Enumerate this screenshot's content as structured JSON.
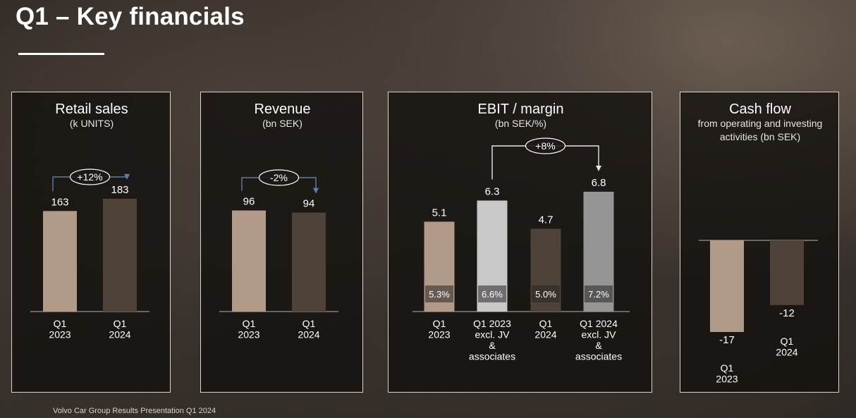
{
  "page": {
    "title": "Q1 – Key financials",
    "footer": "Volvo Car Group Results Presentation Q1 2024"
  },
  "chart_data": [
    {
      "type": "bar",
      "title": "Retail sales",
      "subtitle": [
        "(k UNITS)"
      ],
      "categories": [
        [
          "Q1",
          "2023"
        ],
        [
          "Q1",
          "2024"
        ]
      ],
      "values": [
        163,
        183
      ],
      "labels": [
        "163",
        "183"
      ],
      "colors": [
        "#b29a88",
        "#4e4239"
      ],
      "ylim": [
        0,
        280
      ],
      "change": {
        "text": "+12%",
        "from": 0,
        "to": 1
      }
    },
    {
      "type": "bar",
      "title": "Revenue",
      "subtitle": [
        "(bn SEK)"
      ],
      "categories": [
        [
          "Q1",
          "2023"
        ],
        [
          "Q1",
          "2024"
        ]
      ],
      "values": [
        96,
        94
      ],
      "labels": [
        "96",
        "94"
      ],
      "colors": [
        "#b29a88",
        "#4e4239"
      ],
      "ylim": [
        0,
        164
      ],
      "change": {
        "text": "-2%",
        "from": 0,
        "to": 1
      }
    },
    {
      "type": "bar",
      "title": "EBIT / margin",
      "subtitle": [
        "(bn SEK/%)"
      ],
      "categories": [
        [
          "Q1",
          "2023"
        ],
        [
          "Q1  2023",
          "excl. JV",
          "&",
          "associates"
        ],
        [
          "Q1",
          "2024"
        ],
        [
          "Q1  2024",
          "excl. JV",
          "&",
          "associates"
        ]
      ],
      "values": [
        5.1,
        6.3,
        4.7,
        6.8
      ],
      "labels": [
        "5.1",
        "6.3",
        "4.7",
        "6.8"
      ],
      "margins": [
        "5.3%",
        "6.6%",
        "5.0%",
        "7.2%"
      ],
      "colors": [
        "#b29a88",
        "#c8c8c8",
        "#4e4239",
        "#959595"
      ],
      "ylim": [
        0,
        8.2
      ],
      "change": {
        "text": "+8%",
        "from": 1,
        "to": 3
      }
    },
    {
      "type": "bar",
      "title": "Cash flow",
      "subtitle": [
        "from operating and investing",
        "activities (bn SEK)"
      ],
      "categories": [
        [
          "Q1",
          "2023"
        ],
        [
          "Q1",
          "2024"
        ]
      ],
      "values": [
        -17,
        -12
      ],
      "labels": [
        "-17",
        "-12"
      ],
      "colors": [
        "#b29a88",
        "#4e4239"
      ],
      "ylim": [
        -17,
        0
      ]
    }
  ]
}
